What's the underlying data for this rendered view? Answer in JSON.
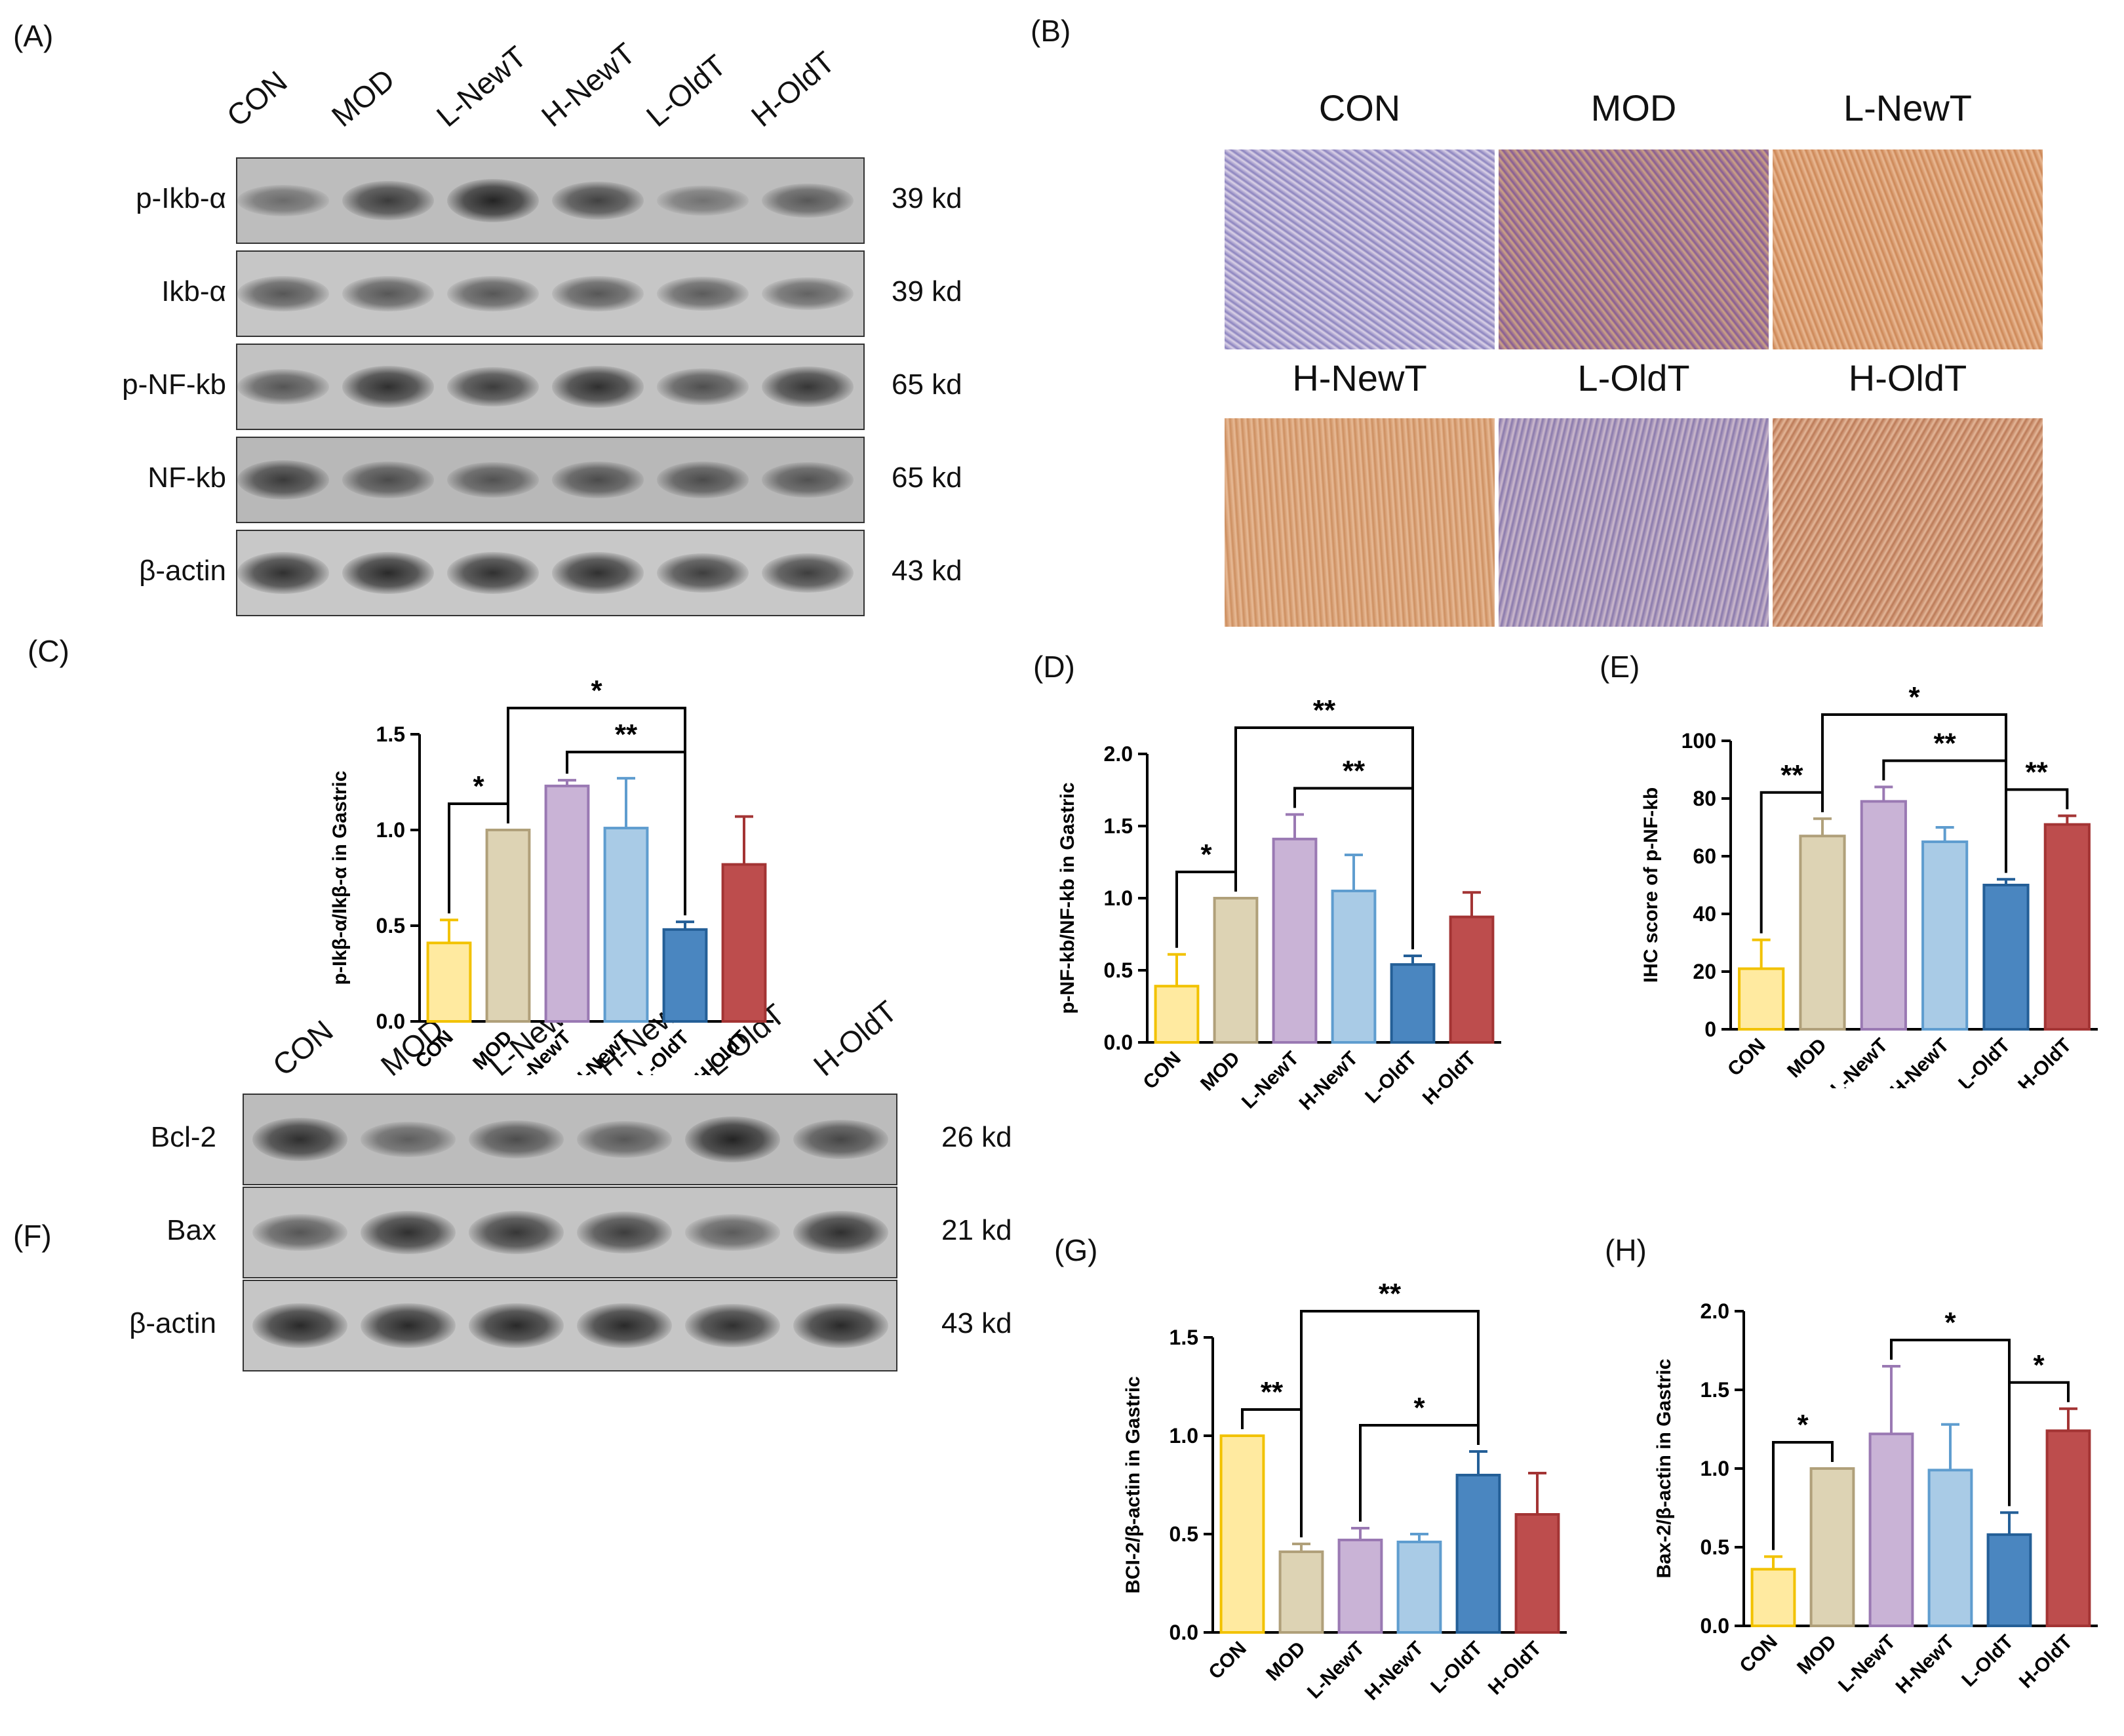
{
  "panels": {
    "A": {
      "letter": "(A)",
      "lanes": [
        "CON",
        "MOD",
        "L-NewT",
        "H-NewT",
        "L-OldT",
        "H-OldT"
      ],
      "rows": [
        {
          "protein": "p-Ikb-α",
          "kd": "39 kd",
          "bg": "#bdbdbd",
          "intensity": [
            0.35,
            0.75,
            0.95,
            0.7,
            0.3,
            0.5
          ]
        },
        {
          "protein": "Ikb-α",
          "kd": "39 kd",
          "bg": "#c6c6c6",
          "intensity": [
            0.55,
            0.55,
            0.55,
            0.55,
            0.5,
            0.45
          ]
        },
        {
          "protein": "p-NF-kb",
          "kd": "65 kd",
          "bg": "#c2c2c2",
          "intensity": [
            0.55,
            0.85,
            0.75,
            0.85,
            0.6,
            0.8
          ]
        },
        {
          "protein": "NF-kb",
          "kd": "65 kd",
          "bg": "#b8b8b8",
          "intensity": [
            0.75,
            0.6,
            0.55,
            0.6,
            0.6,
            0.55
          ]
        },
        {
          "protein": "β-actin",
          "kd": "43 kd",
          "bg": "#c8c8c8",
          "intensity": [
            0.85,
            0.9,
            0.85,
            0.85,
            0.75,
            0.75
          ]
        }
      ]
    },
    "B": {
      "letter": "(B)",
      "groups": [
        "CON",
        "MOD",
        "L-NewT",
        "H-NewT",
        "L-OldT",
        "H-OldT"
      ]
    },
    "F": {
      "letter": "(F)",
      "lanes": [
        "CON",
        "MOD",
        "L-NewT",
        "H-NewT",
        "L-OldT",
        "H-OldT"
      ],
      "rows": [
        {
          "protein": "Bcl-2",
          "kd": "26 kd",
          "bg": "#bcbcbc",
          "intensity": [
            0.85,
            0.45,
            0.6,
            0.5,
            0.95,
            0.65
          ]
        },
        {
          "protein": "Bax",
          "kd": "21 kd",
          "bg": "#c4c4c4",
          "intensity": [
            0.55,
            0.85,
            0.8,
            0.75,
            0.5,
            0.85
          ]
        },
        {
          "protein": "β-actin",
          "kd": "43 kd",
          "bg": "#c6c6c6",
          "intensity": [
            0.9,
            0.9,
            0.9,
            0.9,
            0.85,
            0.9
          ]
        }
      ]
    }
  },
  "colors": {
    "CON": {
      "fill": "#ffeaa0",
      "stroke": "#f2c200"
    },
    "MOD": {
      "fill": "#ddd3b4",
      "stroke": "#b0a07a"
    },
    "L-NewT": {
      "fill": "#c9b3d6",
      "stroke": "#9a79b3"
    },
    "H-NewT": {
      "fill": "#a9cbe6",
      "stroke": "#5f9dcf"
    },
    "L-OldT": {
      "fill": "#4a86c0",
      "stroke": "#245f97"
    },
    "H-OldT": {
      "fill": "#bd4d4d",
      "stroke": "#a33434"
    }
  },
  "chart_data": [
    {
      "id": "C",
      "letter": "(C)",
      "type": "bar",
      "categories": [
        "CON",
        "MOD",
        "L-NewT",
        "H-NewT",
        "L-OldT",
        "H-OldT"
      ],
      "values": [
        0.41,
        1.0,
        1.23,
        1.01,
        0.48,
        0.82
      ],
      "errors": [
        0.12,
        0.0,
        0.03,
        0.26,
        0.04,
        0.25
      ],
      "ylabel": "p-Ikβ-α/Ikβ-α in Gastric",
      "ylim": [
        0,
        1.5
      ],
      "ticks": [
        "0.0",
        "0.5",
        "1.0",
        "1.5"
      ],
      "comparisons": [
        {
          "from": 0,
          "to": 1,
          "label": "*"
        },
        {
          "from": 1,
          "to": 4,
          "label": "*"
        },
        {
          "from": 2,
          "to": 4,
          "label": "**"
        }
      ]
    },
    {
      "id": "D",
      "letter": "(D)",
      "type": "bar",
      "categories": [
        "CON",
        "MOD",
        "L-NewT",
        "H-NewT",
        "L-OldT",
        "H-OldT"
      ],
      "values": [
        0.39,
        1.0,
        1.41,
        1.05,
        0.54,
        0.87
      ],
      "errors": [
        0.22,
        0.0,
        0.17,
        0.25,
        0.06,
        0.17
      ],
      "ylabel": "p-NF-kb/NF-kb in Gastric",
      "ylim": [
        0,
        2.0
      ],
      "ticks": [
        "0.0",
        "0.5",
        "1.0",
        "1.5",
        "2.0"
      ],
      "comparisons": [
        {
          "from": 0,
          "to": 1,
          "label": "*"
        },
        {
          "from": 1,
          "to": 4,
          "label": "**"
        },
        {
          "from": 2,
          "to": 4,
          "label": "**"
        }
      ]
    },
    {
      "id": "E",
      "letter": "(E)",
      "type": "bar",
      "categories": [
        "CON",
        "MOD",
        "L-NewT",
        "H-NewT",
        "L-OldT",
        "H-OldT"
      ],
      "values": [
        21,
        67,
        79,
        65,
        50,
        71
      ],
      "errors": [
        10,
        6,
        5,
        5,
        2,
        3
      ],
      "ylabel": "IHC score of p-NF-kb",
      "ylim": [
        0,
        100
      ],
      "ticks": [
        "0",
        "20",
        "40",
        "60",
        "80",
        "100"
      ],
      "comparisons": [
        {
          "from": 0,
          "to": 1,
          "label": "**"
        },
        {
          "from": 1,
          "to": 4,
          "label": "*"
        },
        {
          "from": 2,
          "to": 4,
          "label": "**"
        },
        {
          "from": 4,
          "to": 5,
          "label": "**"
        }
      ]
    },
    {
      "id": "G",
      "letter": "(G)",
      "type": "bar",
      "categories": [
        "CON",
        "MOD",
        "L-NewT",
        "H-NewT",
        "L-OldT",
        "H-OldT"
      ],
      "values": [
        1.0,
        0.41,
        0.47,
        0.46,
        0.8,
        0.6
      ],
      "errors": [
        0.0,
        0.04,
        0.06,
        0.04,
        0.12,
        0.21
      ],
      "ylabel": "BCI-2/β-actin in Gastric",
      "ylim": [
        0,
        1.5
      ],
      "ticks": [
        "0.0",
        "0.5",
        "1.0",
        "1.5"
      ],
      "comparisons": [
        {
          "from": 0,
          "to": 1,
          "label": "**"
        },
        {
          "from": 1,
          "to": 4,
          "label": "**"
        },
        {
          "from": 2,
          "to": 4,
          "label": "*"
        }
      ]
    },
    {
      "id": "H",
      "letter": "(H)",
      "type": "bar",
      "categories": [
        "CON",
        "MOD",
        "L-NewT",
        "H-NewT",
        "L-OldT",
        "H-OldT"
      ],
      "values": [
        0.36,
        1.0,
        1.22,
        0.99,
        0.58,
        1.24
      ],
      "errors": [
        0.08,
        0.0,
        0.43,
        0.29,
        0.14,
        0.14
      ],
      "ylabel": "Bax-2/β-actin in Gastric",
      "ylim": [
        0,
        2.0
      ],
      "ticks": [
        "0.0",
        "0.5",
        "1.0",
        "1.5",
        "2.0"
      ],
      "comparisons": [
        {
          "from": 0,
          "to": 1,
          "label": "*"
        },
        {
          "from": 2,
          "to": 4,
          "label": "*"
        },
        {
          "from": 4,
          "to": 5,
          "label": "*"
        }
      ]
    }
  ]
}
